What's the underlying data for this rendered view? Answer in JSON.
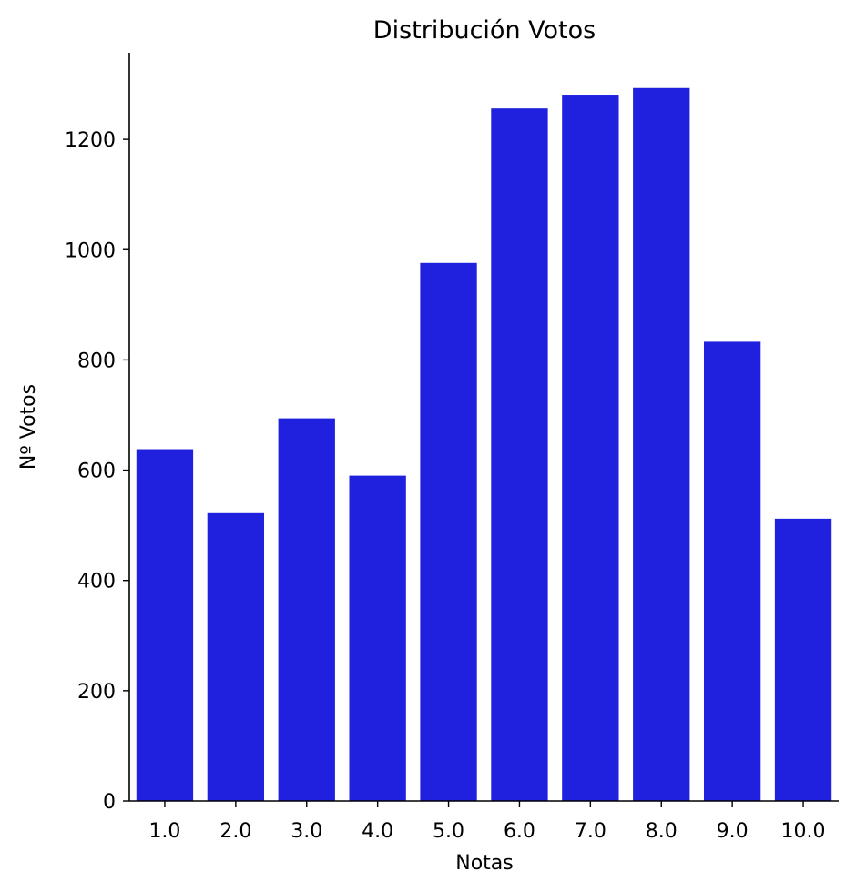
{
  "chart_data": {
    "type": "bar",
    "title": "Distribución Votos",
    "xlabel": "Notas",
    "ylabel": "Nº Votos",
    "categories": [
      "1.0",
      "2.0",
      "3.0",
      "4.0",
      "5.0",
      "6.0",
      "7.0",
      "8.0",
      "9.0",
      "10.0"
    ],
    "values": [
      638,
      522,
      694,
      590,
      976,
      1256,
      1281,
      1293,
      833,
      512
    ],
    "ylim": [
      0,
      1357
    ],
    "yticks": [
      0,
      200,
      400,
      600,
      800,
      1000,
      1200
    ],
    "color": "#2020df",
    "grid": false,
    "legend": "none"
  }
}
